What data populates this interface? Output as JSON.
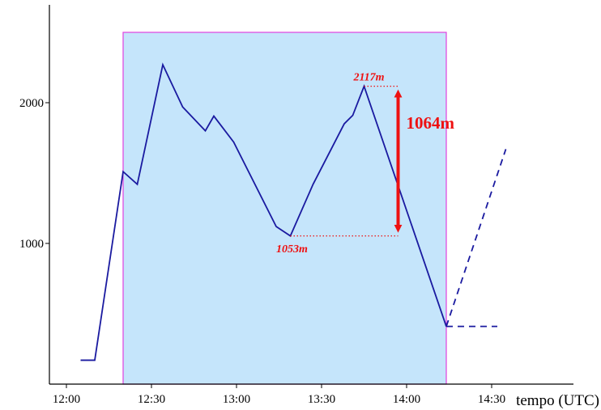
{
  "chart_data": {
    "type": "line",
    "title": "",
    "xlabel": "tempo (UTC)",
    "ylabel": "",
    "xlim": [
      "12:00",
      "14:50"
    ],
    "ylim": [
      0,
      2700
    ],
    "x_ticks": [
      "12:00",
      "12:30",
      "13:00",
      "13:30",
      "14:00",
      "14:30"
    ],
    "y_ticks": [
      1000,
      2000
    ],
    "grid": false,
    "legend": "none",
    "series": [
      {
        "style": "solid",
        "color": "#1a1aa0",
        "x": [
          "12:05",
          "12:10",
          "12:20",
          "12:25",
          "12:34",
          "12:41",
          "12:49",
          "12:52",
          "12:59",
          "13:14",
          "13:19",
          "13:27",
          "13:38",
          "13:41",
          "13:45",
          "14:14"
        ],
        "y": [
          170,
          170,
          1510,
          1420,
          2270,
          1970,
          1800,
          1905,
          1720,
          1120,
          1053,
          1420,
          1850,
          1910,
          2117,
          410
        ]
      },
      {
        "style": "dashed",
        "color": "#1a1aa0",
        "x": [
          "14:14",
          "14:35"
        ],
        "y": [
          410,
          1670
        ]
      },
      {
        "style": "dashed",
        "color": "#1a1aa0",
        "x": [
          "14:14",
          "14:32"
        ],
        "y": [
          410,
          410
        ]
      }
    ],
    "highlight_region": {
      "x_start": "12:20",
      "x_end": "14:14",
      "y_top": 2500,
      "fill": "#c5e5fb",
      "stroke": "#e040e0"
    },
    "annotations": {
      "peak_label": "2117m",
      "trough_label": "1053m",
      "gain_label": "1064m",
      "peak_value": 2117,
      "trough_value": 1053,
      "arrow_x": "13:57",
      "ref_line_end": "13:57",
      "color": "#ee1111"
    }
  }
}
